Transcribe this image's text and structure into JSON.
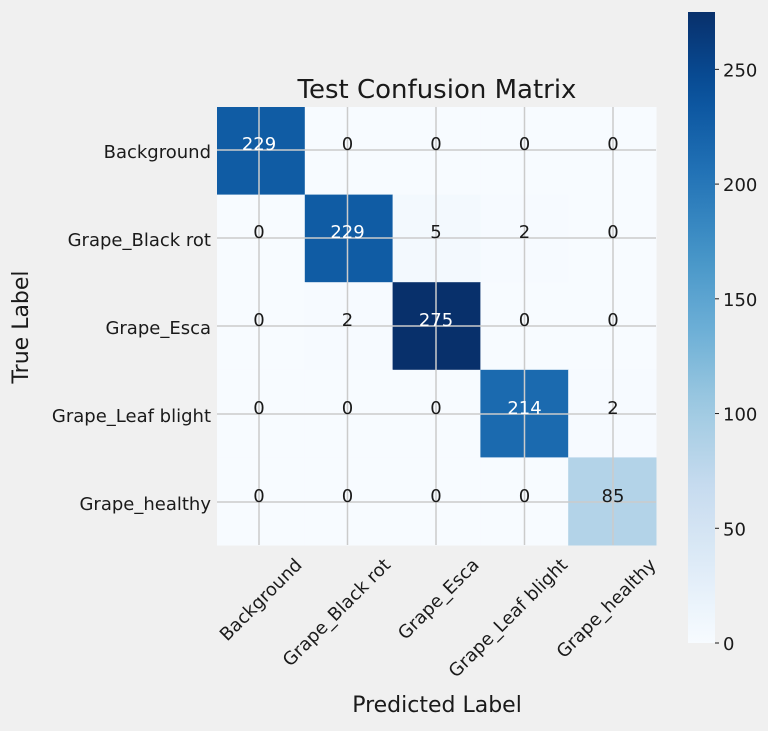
{
  "chart_data": {
    "type": "heatmap",
    "title": "Test Confusion Matrix",
    "xlabel": "Predicted Label",
    "ylabel": "True Label",
    "x_categories": [
      "Background",
      "Grape_Black rot",
      "Grape_Esca",
      "Grape_Leaf blight",
      "Grape_healthy"
    ],
    "y_categories": [
      "Background",
      "Grape_Black rot",
      "Grape_Esca",
      "Grape_Leaf blight",
      "Grape_healthy"
    ],
    "values": [
      [
        229,
        0,
        0,
        0,
        0
      ],
      [
        0,
        229,
        5,
        2,
        0
      ],
      [
        0,
        2,
        275,
        0,
        0
      ],
      [
        0,
        0,
        0,
        214,
        2
      ],
      [
        0,
        0,
        0,
        0,
        85
      ]
    ],
    "colormap": "Blues",
    "color_range": [
      0,
      275
    ],
    "colorbar_ticks": [
      0,
      50,
      100,
      150,
      200,
      250
    ],
    "grid": true,
    "x_tick_rotation_deg": 45
  }
}
